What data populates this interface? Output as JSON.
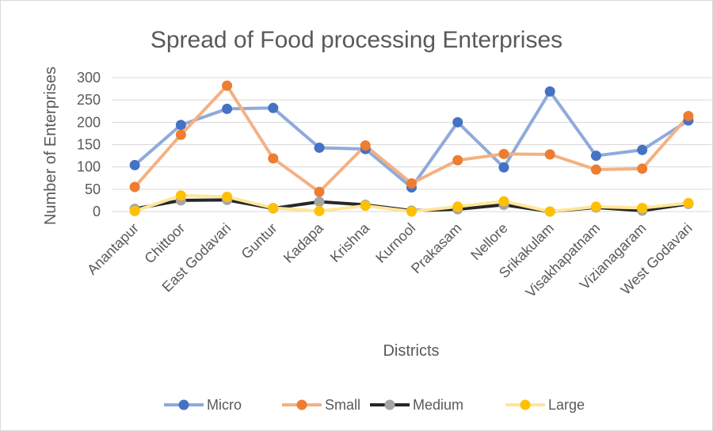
{
  "chart_data": {
    "type": "line",
    "title": "Spread of Food processing Enterprises",
    "xlabel": "Districts",
    "ylabel": "Number of Enterprises",
    "ylim": [
      0,
      300
    ],
    "yticks": [
      "0",
      "50",
      "100",
      "150",
      "200",
      "250",
      "300"
    ],
    "grid": true,
    "legend_position": "bottom",
    "categories": [
      "Anantapur",
      "Chittoor",
      "East Godavari",
      "Guntur",
      "Kadapa",
      "Krishna",
      "Kurnool",
      "Prakasam",
      "Nellore",
      "Srikakulam",
      "Visakhapatnam",
      "Vizianagaram",
      "West Godavari"
    ],
    "series": [
      {
        "name": "Micro",
        "values": [
          104,
          194,
          230,
          232,
          143,
          140,
          54,
          200,
          99,
          269,
          125,
          138,
          204
        ],
        "line_color": "#8faadc",
        "marker_color": "#4472c4"
      },
      {
        "name": "Small",
        "values": [
          55,
          172,
          282,
          119,
          44,
          148,
          63,
          115,
          129,
          128,
          94,
          96,
          214
        ],
        "line_color": "#f4b183",
        "marker_color": "#ed7d31"
      },
      {
        "name": "Medium",
        "values": [
          6,
          25,
          26,
          7,
          22,
          15,
          2,
          5,
          15,
          0,
          9,
          2,
          17
        ],
        "line_color": "#262626",
        "marker_color": "#a5a5a5"
      },
      {
        "name": "Large",
        "values": [
          1,
          36,
          33,
          8,
          1,
          13,
          0,
          11,
          23,
          0,
          11,
          8,
          19
        ],
        "line_color": "#ffe699",
        "marker_color": "#ffc000"
      }
    ]
  }
}
